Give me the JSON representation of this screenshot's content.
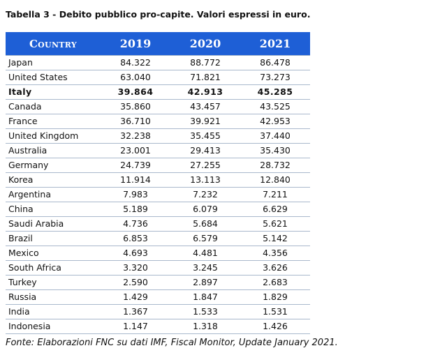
{
  "caption": "Tabella 3 - Debito pubblico pro-capite. Valori espressi in euro.",
  "table": {
    "headers": [
      "Country",
      "2019",
      "2020",
      "2021"
    ],
    "rows": [
      {
        "country": "Japan",
        "values": [
          "84.322",
          "88.772",
          "86.478"
        ],
        "bold": false
      },
      {
        "country": "United States",
        "values": [
          "63.040",
          "71.821",
          "73.273"
        ],
        "bold": false
      },
      {
        "country": "Italy",
        "values": [
          "39.864",
          "42.913",
          "45.285"
        ],
        "bold": true
      },
      {
        "country": "Canada",
        "values": [
          "35.860",
          "43.457",
          "43.525"
        ],
        "bold": false
      },
      {
        "country": "France",
        "values": [
          "36.710",
          "39.921",
          "42.953"
        ],
        "bold": false
      },
      {
        "country": "United Kingdom",
        "values": [
          "32.238",
          "35.455",
          "37.440"
        ],
        "bold": false
      },
      {
        "country": "Australia",
        "values": [
          "23.001",
          "29.413",
          "35.430"
        ],
        "bold": false
      },
      {
        "country": "Germany",
        "values": [
          "24.739",
          "27.255",
          "28.732"
        ],
        "bold": false
      },
      {
        "country": "Korea",
        "values": [
          "11.914",
          "13.113",
          "12.840"
        ],
        "bold": false
      },
      {
        "country": "Argentina",
        "values": [
          "7.983",
          "7.232",
          "7.211"
        ],
        "bold": false
      },
      {
        "country": "China",
        "values": [
          "5.189",
          "6.079",
          "6.629"
        ],
        "bold": false
      },
      {
        "country": "Saudi Arabia",
        "values": [
          "4.736",
          "5.684",
          "5.621"
        ],
        "bold": false
      },
      {
        "country": "Brazil",
        "values": [
          "6.853",
          "6.579",
          "5.142"
        ],
        "bold": false
      },
      {
        "country": "Mexico",
        "values": [
          "4.693",
          "4.481",
          "4.356"
        ],
        "bold": false
      },
      {
        "country": "South Africa",
        "values": [
          "3.320",
          "3.245",
          "3.626"
        ],
        "bold": false
      },
      {
        "country": "Turkey",
        "values": [
          "2.590",
          "2.897",
          "2.683"
        ],
        "bold": false
      },
      {
        "country": "Russia",
        "values": [
          "1.429",
          "1.847",
          "1.829"
        ],
        "bold": false
      },
      {
        "country": "India",
        "values": [
          "1.367",
          "1.533",
          "1.531"
        ],
        "bold": false
      },
      {
        "country": "Indonesia",
        "values": [
          "1.147",
          "1.318",
          "1.426"
        ],
        "bold": false
      }
    ]
  },
  "source": "Fonte: Elaborazioni FNC su dati IMF, Fiscal Monitor, Update January 2021.",
  "colors": {
    "header_background": "#1e5fd6",
    "header_text": "#ffffff",
    "row_divider": "#a9b8cc"
  }
}
